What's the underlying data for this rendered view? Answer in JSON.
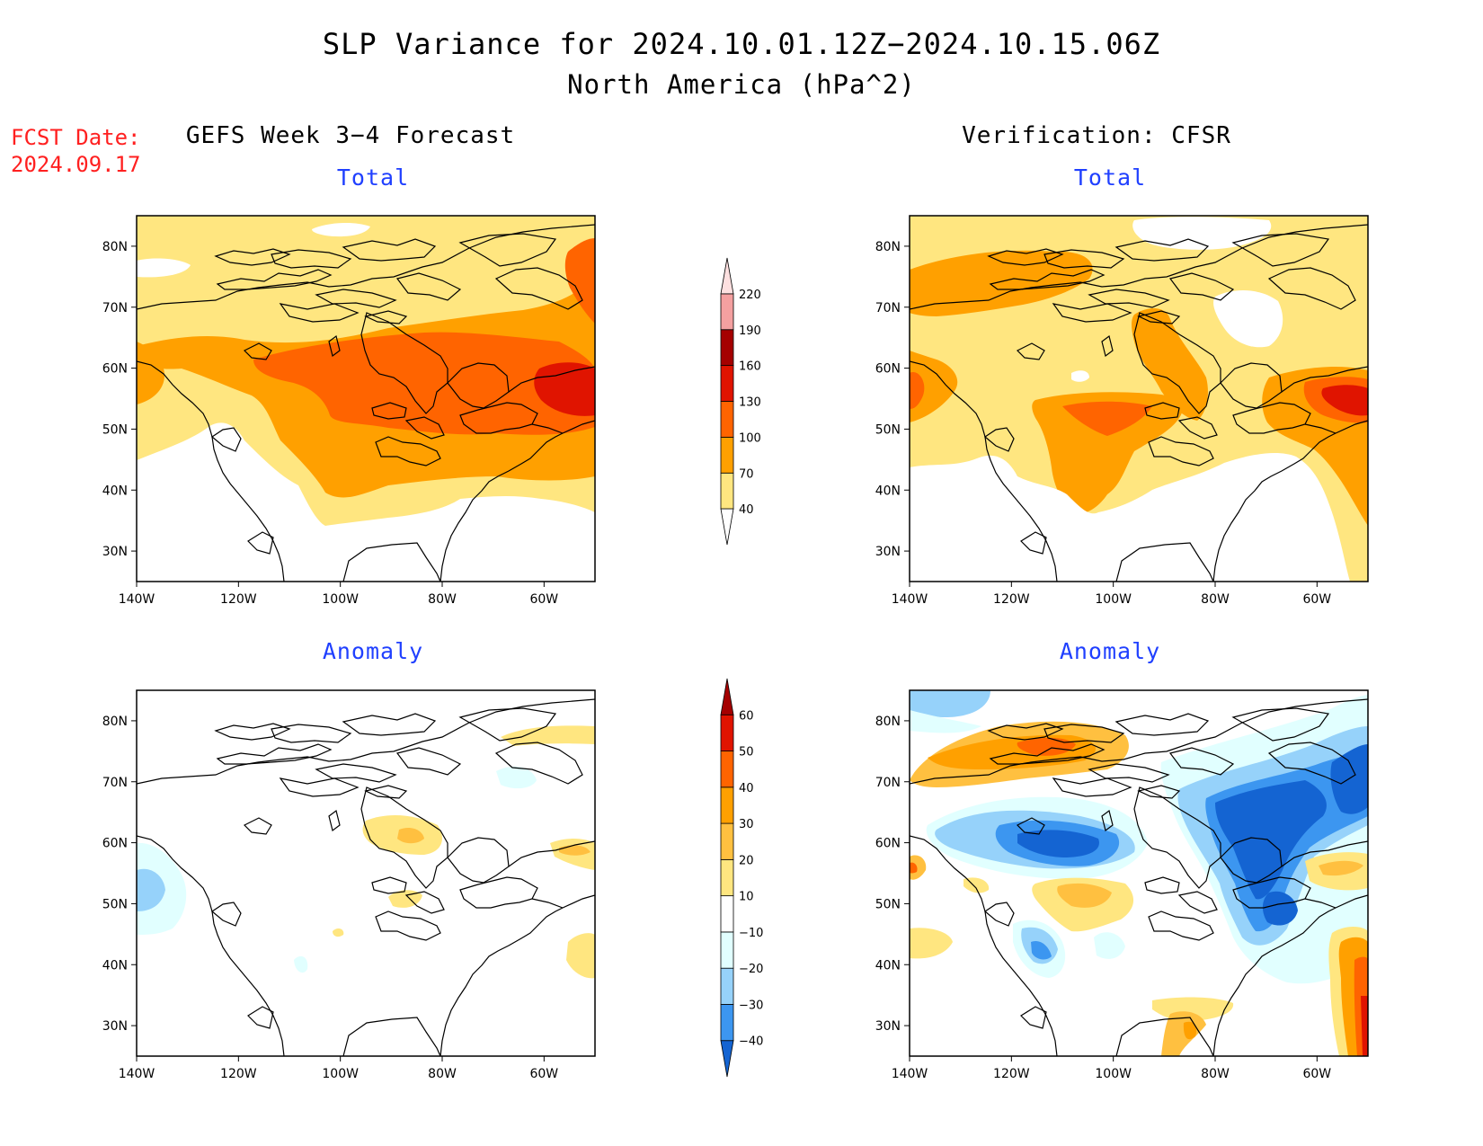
{
  "figure": {
    "title": "SLP Variance for 2024.10.01.12Z−2024.10.15.06Z",
    "subtitle": "North America (hPa^2)",
    "fcst_label": "FCST Date:",
    "fcst_date": "2024.09.17",
    "left_column_title": "GEFS Week 3−4 Forecast",
    "right_column_title": "Verification: CFSR"
  },
  "panels": {
    "fcst_total_title": "Total",
    "verif_total_title": "Total",
    "fcst_anom_title": "Anomaly",
    "verif_anom_title": "Anomaly"
  },
  "axes": {
    "lat_labels": [
      "80N",
      "70N",
      "60N",
      "50N",
      "40N",
      "30N"
    ],
    "lon_labels": [
      "140W",
      "120W",
      "100W",
      "80W",
      "60W"
    ]
  },
  "colorbars": {
    "total": {
      "levels": [
        "40",
        "70",
        "100",
        "130",
        "160",
        "190",
        "220"
      ],
      "colors": [
        "#ffe680",
        "#ffa000",
        "#ff6400",
        "#e01400",
        "#a50000",
        "#f4a0a0",
        "#fde0e0"
      ]
    },
    "anomaly": {
      "levels": [
        "−40",
        "−30",
        "−20",
        "−10",
        "10",
        "20",
        "30",
        "40",
        "50",
        "60"
      ],
      "colors": [
        "#1464d2",
        "#3c96f0",
        "#96d2fa",
        "#e1ffff",
        "#ffffff",
        "#ffe680",
        "#ffc040",
        "#ffa000",
        "#ff6400",
        "#e01400",
        "#a50000"
      ]
    }
  },
  "map_fields": {
    "total_colors": {
      "lvl1": "#ffe680",
      "lvl2": "#ffa000",
      "lvl3": "#ff6400",
      "lvl4": "#e01400"
    },
    "anomaly_colors": {
      "pos1": "#ffe680",
      "pos2": "#ffc040",
      "pos3": "#ffa000",
      "pos4": "#ff6400",
      "neg1": "#e1ffff",
      "neg2": "#96d2fa",
      "neg3": "#3c96f0",
      "neg4": "#1464d2"
    }
  }
}
